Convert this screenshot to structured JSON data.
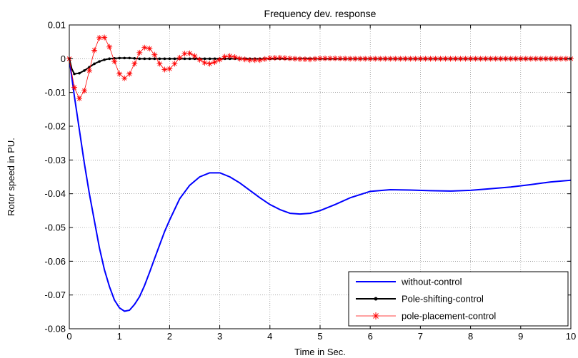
{
  "chart_data": {
    "type": "line",
    "title": "Frequency dev. response",
    "xlabel": "Time in Sec.",
    "ylabel": "Rotor speed in PU.",
    "xlim": [
      0,
      10
    ],
    "ylim": [
      -0.08,
      0.01
    ],
    "xticks": [
      "0",
      "1",
      "2",
      "3",
      "4",
      "5",
      "6",
      "7",
      "8",
      "9",
      "10"
    ],
    "yticks": [
      "0.01",
      "0",
      "-0.01",
      "-0.02",
      "-0.03",
      "-0.04",
      "-0.05",
      "-0.06",
      "-0.07",
      "-0.08"
    ],
    "grid": true,
    "legend_position": "bottom-right",
    "series": [
      {
        "name": "without-control",
        "color": "#0000ff",
        "marker": "none",
        "x": [
          0,
          0.1,
          0.2,
          0.3,
          0.4,
          0.5,
          0.6,
          0.7,
          0.8,
          0.9,
          1.0,
          1.1,
          1.2,
          1.3,
          1.4,
          1.5,
          1.6,
          1.7,
          1.8,
          1.9,
          2.0,
          2.2,
          2.4,
          2.6,
          2.8,
          3.0,
          3.2,
          3.4,
          3.6,
          3.8,
          4.0,
          4.2,
          4.4,
          4.6,
          4.8,
          5.0,
          5.3,
          5.6,
          6.0,
          6.4,
          6.8,
          7.2,
          7.6,
          8.0,
          8.4,
          8.8,
          9.2,
          9.6,
          10.0
        ],
        "y": [
          0,
          -0.011,
          -0.021,
          -0.031,
          -0.04,
          -0.048,
          -0.056,
          -0.0625,
          -0.0675,
          -0.0715,
          -0.0738,
          -0.0748,
          -0.0745,
          -0.0728,
          -0.0705,
          -0.0672,
          -0.0633,
          -0.0592,
          -0.0552,
          -0.0512,
          -0.0478,
          -0.0415,
          -0.0375,
          -0.035,
          -0.0338,
          -0.0338,
          -0.035,
          -0.0368,
          -0.039,
          -0.0412,
          -0.0432,
          -0.0447,
          -0.0458,
          -0.046,
          -0.0458,
          -0.045,
          -0.0432,
          -0.0412,
          -0.0393,
          -0.0388,
          -0.0389,
          -0.0391,
          -0.0392,
          -0.039,
          -0.0385,
          -0.038,
          -0.0373,
          -0.0365,
          -0.036
        ]
      },
      {
        "name": "Pole-shifting-control",
        "color": "#000000",
        "marker": "dot",
        "x": [
          0,
          0.05,
          0.1,
          0.2,
          0.3,
          0.4,
          0.5,
          0.6,
          0.7,
          0.8,
          0.9,
          1.0,
          1.1,
          1.2,
          1.3,
          1.4,
          1.5,
          1.6,
          1.7,
          1.8,
          1.9,
          2.0,
          2.2,
          2.4,
          2.6,
          2.8,
          3.0,
          3.5,
          4.0,
          4.5,
          5.0,
          5.5,
          6.0,
          6.5,
          7.0,
          7.5,
          8.0,
          8.5,
          9.0,
          9.5,
          10.0
        ],
        "y": [
          0,
          -0.003,
          -0.0045,
          -0.0043,
          -0.0035,
          -0.0025,
          -0.0015,
          -0.0008,
          -0.0003,
          0,
          0.0001,
          0.0002,
          0.0002,
          0.0002,
          0.0001,
          0,
          0,
          0,
          0,
          0,
          0,
          0,
          0,
          0,
          0,
          0,
          0,
          0,
          0,
          0,
          0,
          0,
          0,
          0,
          0,
          0,
          0,
          0,
          0,
          0,
          0
        ]
      },
      {
        "name": "pole-placement-control",
        "color": "#ff0000",
        "marker": "star",
        "x": [
          0,
          0.1,
          0.2,
          0.3,
          0.4,
          0.5,
          0.6,
          0.7,
          0.8,
          0.9,
          1.0,
          1.1,
          1.2,
          1.3,
          1.4,
          1.5,
          1.6,
          1.7,
          1.8,
          1.9,
          2.0,
          2.1,
          2.2,
          2.3,
          2.4,
          2.5,
          2.6,
          2.7,
          2.8,
          2.9,
          3.0,
          3.1,
          3.2,
          3.3,
          3.4,
          3.6,
          3.8,
          4.0,
          4.2,
          4.4,
          4.6,
          4.8,
          5.0,
          5.3,
          5.6,
          6.0,
          6.5,
          7.0,
          7.5,
          8.0,
          8.5,
          9.0,
          9.5,
          10.0
        ],
        "y": [
          0,
          -0.0085,
          -0.0118,
          -0.0095,
          -0.0035,
          0.0025,
          0.0062,
          0.0063,
          0.0035,
          -0.0008,
          -0.0045,
          -0.0058,
          -0.0045,
          -0.0015,
          0.0018,
          0.0033,
          0.003,
          0.0012,
          -0.0015,
          -0.0032,
          -0.003,
          -0.0015,
          0.0003,
          0.0015,
          0.0016,
          0.0008,
          -0.0003,
          -0.0012,
          -0.0015,
          -0.001,
          -0.0003,
          0.0006,
          0.0008,
          0.0005,
          0,
          -0.0004,
          -0.0004,
          0.0002,
          0.0003,
          0.0001,
          -0.0001,
          -0.0002,
          0.0001,
          0.0001,
          0,
          0,
          0,
          0,
          0,
          0,
          0,
          0,
          0,
          0
        ]
      }
    ]
  }
}
